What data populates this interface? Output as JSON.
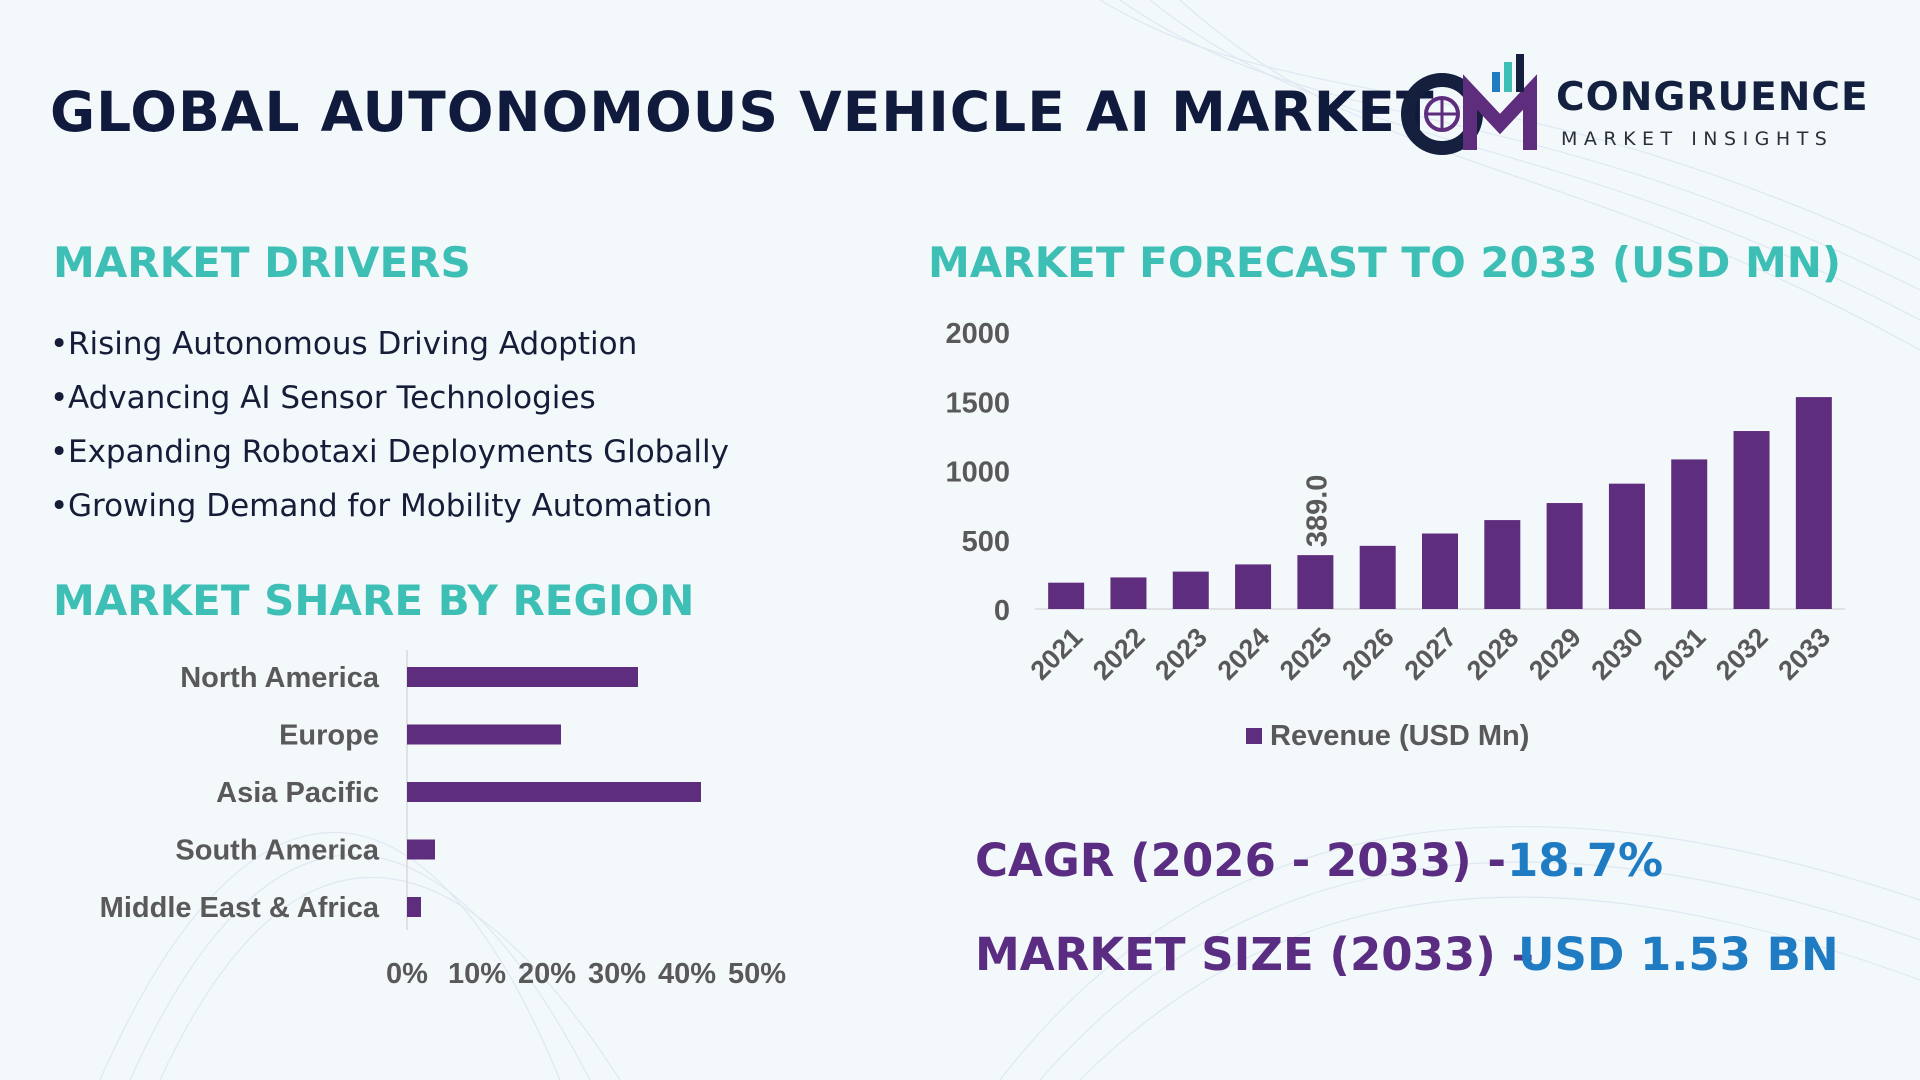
{
  "header": {
    "title": "GLOBAL AUTONOMOUS VEHICLE AI MARKET",
    "logo_name": "CONGRUENCE",
    "logo_tagline": "MARKET INSIGHTS"
  },
  "drivers": {
    "title": "MARKET DRIVERS",
    "items": [
      "Rising Autonomous Driving Adoption",
      "Advancing AI Sensor Technologies",
      "Expanding Robotaxi Deployments Globally",
      "Growing Demand for Mobility Automation"
    ]
  },
  "region": {
    "title": "MARKET SHARE BY REGION"
  },
  "forecast": {
    "title": "MARKET FORECAST TO 2033 (USD MN)"
  },
  "stats": {
    "cagr_label": "CAGR (2026 - 2033) -",
    "cagr_value": "18.7%",
    "size_label": "MARKET SIZE (2033) –",
    "size_value": "USD 1.53 BN"
  },
  "colors": {
    "bar": "#5e2d7e",
    "section_title": "#3dbfb5",
    "stat_label": "#5a2d82",
    "stat_value": "#1f7cc2",
    "title": "#101a3d"
  },
  "chart_data": [
    {
      "type": "bar",
      "orientation": "vertical",
      "categories": [
        "2021",
        "2022",
        "2023",
        "2024",
        "2025",
        "2026",
        "2027",
        "2028",
        "2029",
        "2030",
        "2031",
        "2032",
        "2033"
      ],
      "series": [
        {
          "name": "Revenue (USD Mn)",
          "values": [
            190,
            228,
            270,
            322,
            389.0,
            456,
            545,
            642,
            765,
            905,
            1080,
            1285,
            1530
          ]
        }
      ],
      "data_labels": [
        {
          "category": "2025",
          "text": "389.0"
        }
      ],
      "ylim": [
        0,
        2000
      ],
      "yticks": [
        0,
        500,
        1000,
        1500,
        2000
      ],
      "legend": "bottom",
      "grid": false
    },
    {
      "type": "bar",
      "orientation": "horizontal",
      "categories": [
        "North America",
        "Europe",
        "Asia Pacific",
        "South America",
        "Middle East & Africa"
      ],
      "values": [
        33,
        22,
        42,
        4,
        2
      ],
      "xlim": [
        0,
        50
      ],
      "xticks": [
        "0%",
        "10%",
        "20%",
        "30%",
        "40%",
        "50%"
      ],
      "grid": false
    }
  ]
}
